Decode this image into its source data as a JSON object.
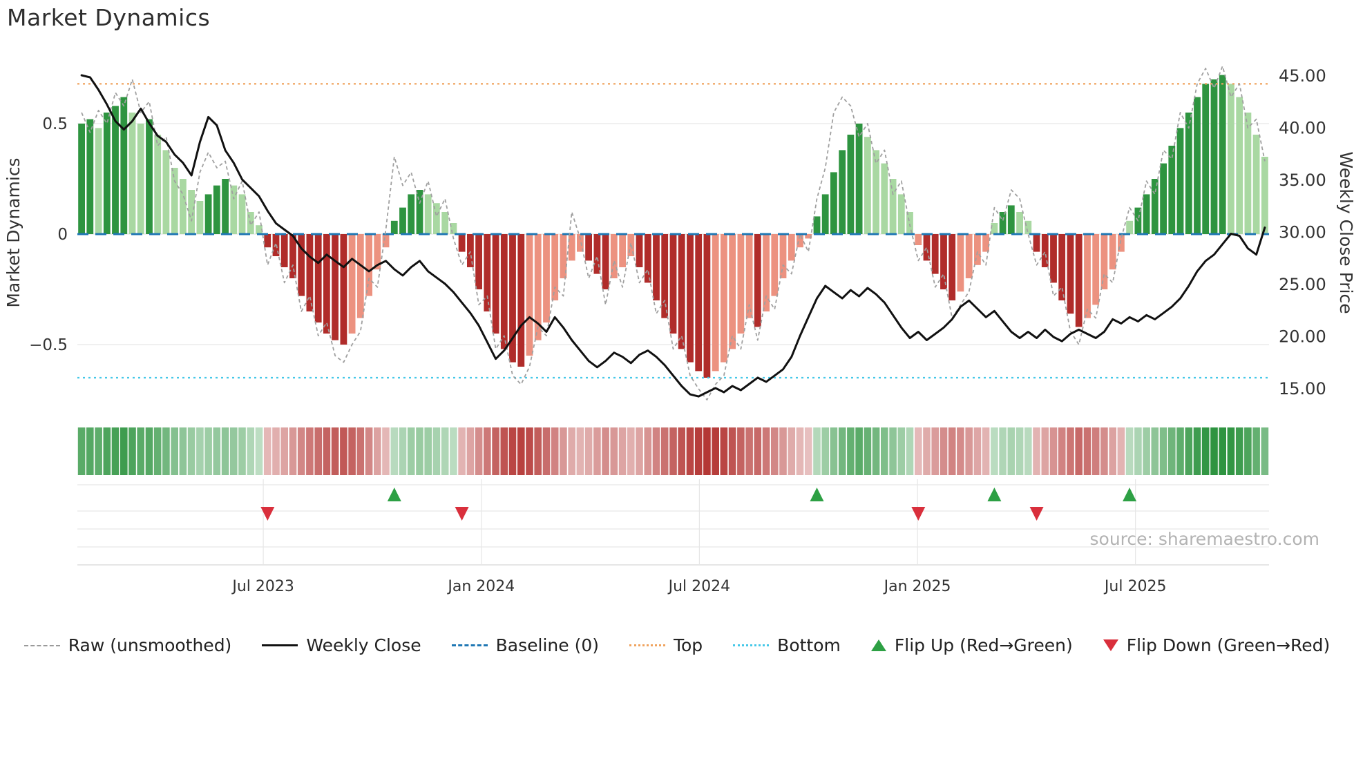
{
  "title": "Market Dynamics",
  "source": "source: sharemaestro.com",
  "axes": {
    "left_label": "Market Dynamics",
    "right_label": "Weekly Close Price"
  },
  "legend": [
    {
      "label": "Raw (unsmoothed)",
      "type": "dashed",
      "color": "#9a9a9a"
    },
    {
      "label": "Weekly Close",
      "type": "solid",
      "color": "#111111"
    },
    {
      "label": "Baseline (0)",
      "type": "longdash",
      "color": "#1f77b4"
    },
    {
      "label": "Top",
      "type": "dotted",
      "color": "#f0a35e"
    },
    {
      "label": "Bottom",
      "type": "dotted",
      "color": "#45c8e8"
    },
    {
      "label": "Flip Up (Red→Green)",
      "type": "triangle-up",
      "color": "#2da044"
    },
    {
      "label": "Flip Down (Green→Red)",
      "type": "triangle-down",
      "color": "#d92f3c"
    }
  ],
  "colors": {
    "bar_green_dark": "#2e9440",
    "bar_green_light": "#a9d8a2",
    "bar_red_dark": "#b02c2a",
    "bar_red_light": "#ec9280",
    "line_raw": "#a0a0a0",
    "line_close": "#111111",
    "baseline": "#1f77b4",
    "top": "#f0a35e",
    "bottom": "#45c8e8",
    "flip_up": "#2da044",
    "flip_down": "#d92f3c",
    "grid": "#e6e6e6",
    "grid_dark": "#d8d8d8",
    "tick_text": "#333333"
  },
  "chart_data": {
    "type": "bar",
    "title": "Market Dynamics",
    "n_points": 141,
    "x_axis": {
      "unit": "week",
      "ticks": [
        {
          "label": "Jul 2023",
          "pos": 21.5
        },
        {
          "label": "Jan 2024",
          "pos": 47.3
        },
        {
          "label": "Jul 2024",
          "pos": 73.1
        },
        {
          "label": "Jan 2025",
          "pos": 98.9
        },
        {
          "label": "Jul 2025",
          "pos": 124.7
        }
      ]
    },
    "left_axis": {
      "label": "Market Dynamics",
      "tick_values": [
        0.5,
        0,
        -0.5
      ],
      "tick_labels": [
        "0.5",
        "0",
        "−0.5"
      ],
      "range": [
        -0.82,
        0.82
      ]
    },
    "right_axis": {
      "label": "Weekly Close Price",
      "tick_values": [
        45,
        40,
        35,
        30,
        25,
        20,
        15
      ],
      "tick_labels": [
        "45.00",
        "40.00",
        "35.00",
        "30.00",
        "25.00",
        "20.00",
        "15.00"
      ],
      "range": [
        13,
        47
      ]
    },
    "reference_lines": {
      "baseline": 0,
      "top": 0.68,
      "bottom": -0.65
    },
    "series": [
      {
        "name": "Oscillator (bars)",
        "axis": "left",
        "values": [
          0.5,
          0.52,
          0.48,
          0.55,
          0.58,
          0.62,
          0.55,
          0.5,
          0.52,
          0.45,
          0.38,
          0.3,
          0.25,
          0.2,
          0.15,
          0.18,
          0.22,
          0.25,
          0.22,
          0.18,
          0.1,
          0.04,
          -0.06,
          -0.1,
          -0.15,
          -0.2,
          -0.28,
          -0.35,
          -0.4,
          -0.45,
          -0.48,
          -0.5,
          -0.45,
          -0.38,
          -0.28,
          -0.16,
          -0.06,
          0.06,
          0.12,
          0.18,
          0.2,
          0.18,
          0.14,
          0.1,
          0.05,
          -0.08,
          -0.15,
          -0.25,
          -0.35,
          -0.45,
          -0.52,
          -0.58,
          -0.6,
          -0.55,
          -0.48,
          -0.4,
          -0.3,
          -0.2,
          -0.12,
          -0.08,
          -0.12,
          -0.18,
          -0.25,
          -0.2,
          -0.15,
          -0.1,
          -0.15,
          -0.22,
          -0.3,
          -0.38,
          -0.45,
          -0.52,
          -0.58,
          -0.62,
          -0.65,
          -0.62,
          -0.58,
          -0.52,
          -0.45,
          -0.38,
          -0.42,
          -0.35,
          -0.28,
          -0.2,
          -0.12,
          -0.06,
          -0.02,
          0.08,
          0.18,
          0.28,
          0.38,
          0.45,
          0.5,
          0.44,
          0.38,
          0.32,
          0.25,
          0.18,
          0.1,
          -0.05,
          -0.12,
          -0.18,
          -0.25,
          -0.3,
          -0.26,
          -0.2,
          -0.14,
          -0.08,
          0.05,
          0.1,
          0.13,
          0.1,
          0.06,
          -0.08,
          -0.15,
          -0.22,
          -0.3,
          -0.36,
          -0.42,
          -0.38,
          -0.32,
          -0.25,
          -0.16,
          -0.08,
          0.06,
          0.12,
          0.18,
          0.25,
          0.32,
          0.4,
          0.48,
          0.55,
          0.62,
          0.68,
          0.7,
          0.72,
          0.68,
          0.62,
          0.55,
          0.45,
          0.35
        ]
      },
      {
        "name": "Raw (unsmoothed)",
        "axis": "left",
        "values": [
          0.55,
          0.46,
          0.56,
          0.5,
          0.64,
          0.58,
          0.7,
          0.55,
          0.6,
          0.4,
          0.44,
          0.24,
          0.18,
          0.06,
          0.28,
          0.37,
          0.3,
          0.33,
          0.16,
          0.24,
          0.04,
          0.1,
          -0.14,
          -0.04,
          -0.22,
          -0.14,
          -0.35,
          -0.28,
          -0.46,
          -0.4,
          -0.55,
          -0.58,
          -0.5,
          -0.44,
          -0.2,
          -0.24,
          0.02,
          0.35,
          0.22,
          0.28,
          0.14,
          0.24,
          0.08,
          0.16,
          -0.02,
          -0.14,
          -0.08,
          -0.32,
          -0.28,
          -0.52,
          -0.46,
          -0.64,
          -0.68,
          -0.6,
          -0.42,
          -0.46,
          -0.24,
          -0.28,
          0.1,
          -0.02,
          -0.2,
          -0.1,
          -0.32,
          -0.12,
          -0.24,
          -0.04,
          -0.22,
          -0.16,
          -0.36,
          -0.3,
          -0.52,
          -0.46,
          -0.64,
          -0.7,
          -0.75,
          -0.68,
          -0.64,
          -0.46,
          -0.52,
          -0.32,
          -0.48,
          -0.28,
          -0.34,
          -0.14,
          -0.18,
          0.0,
          -0.08,
          0.16,
          0.3,
          0.55,
          0.62,
          0.58,
          0.44,
          0.5,
          0.32,
          0.38,
          0.18,
          0.24,
          0.04,
          -0.12,
          -0.06,
          -0.24,
          -0.18,
          -0.38,
          -0.32,
          -0.26,
          -0.08,
          -0.14,
          0.12,
          0.06,
          0.2,
          0.16,
          0.0,
          -0.14,
          -0.08,
          -0.28,
          -0.24,
          -0.44,
          -0.5,
          -0.34,
          -0.38,
          -0.18,
          -0.22,
          -0.02,
          0.12,
          0.06,
          0.24,
          0.18,
          0.38,
          0.34,
          0.55,
          0.48,
          0.68,
          0.75,
          0.66,
          0.76,
          0.62,
          0.68,
          0.48,
          0.52,
          0.33
        ]
      },
      {
        "name": "Weekly Close",
        "axis": "right",
        "values": [
          45.0,
          44.8,
          43.6,
          42.2,
          40.6,
          39.8,
          40.6,
          41.8,
          40.4,
          39.2,
          38.6,
          37.4,
          36.6,
          35.4,
          38.6,
          41.0,
          40.2,
          37.8,
          36.6,
          35.0,
          34.2,
          33.4,
          32.0,
          30.8,
          30.2,
          29.6,
          28.4,
          27.6,
          27.0,
          27.8,
          27.2,
          26.6,
          27.4,
          26.8,
          26.2,
          26.8,
          27.2,
          26.4,
          25.8,
          26.6,
          27.2,
          26.2,
          25.6,
          25.0,
          24.2,
          23.2,
          22.2,
          21.0,
          19.4,
          17.8,
          18.6,
          19.8,
          21.0,
          21.8,
          21.2,
          20.4,
          21.8,
          20.8,
          19.6,
          18.6,
          17.6,
          17.0,
          17.6,
          18.4,
          18.0,
          17.4,
          18.2,
          18.6,
          18.0,
          17.2,
          16.2,
          15.2,
          14.4,
          14.2,
          14.6,
          15.0,
          14.6,
          15.2,
          14.8,
          15.4,
          16.0,
          15.6,
          16.2,
          16.8,
          18.0,
          20.0,
          21.8,
          23.6,
          24.8,
          24.2,
          23.6,
          24.4,
          23.8,
          24.6,
          24.0,
          23.2,
          22.0,
          20.8,
          19.8,
          20.4,
          19.6,
          20.2,
          20.8,
          21.6,
          22.8,
          23.4,
          22.6,
          21.8,
          22.4,
          21.4,
          20.4,
          19.8,
          20.4,
          19.8,
          20.6,
          19.9,
          19.5,
          20.2,
          20.6,
          20.2,
          19.8,
          20.4,
          21.6,
          21.2,
          21.8,
          21.4,
          22.0,
          21.6,
          22.2,
          22.8,
          23.6,
          24.8,
          26.2,
          27.2,
          27.8,
          28.8,
          29.8,
          29.6,
          28.4,
          27.8,
          30.4
        ]
      }
    ],
    "flip_up_indices": [
      37,
      87,
      108,
      124
    ],
    "flip_down_indices": [
      22,
      45,
      99,
      113
    ]
  }
}
